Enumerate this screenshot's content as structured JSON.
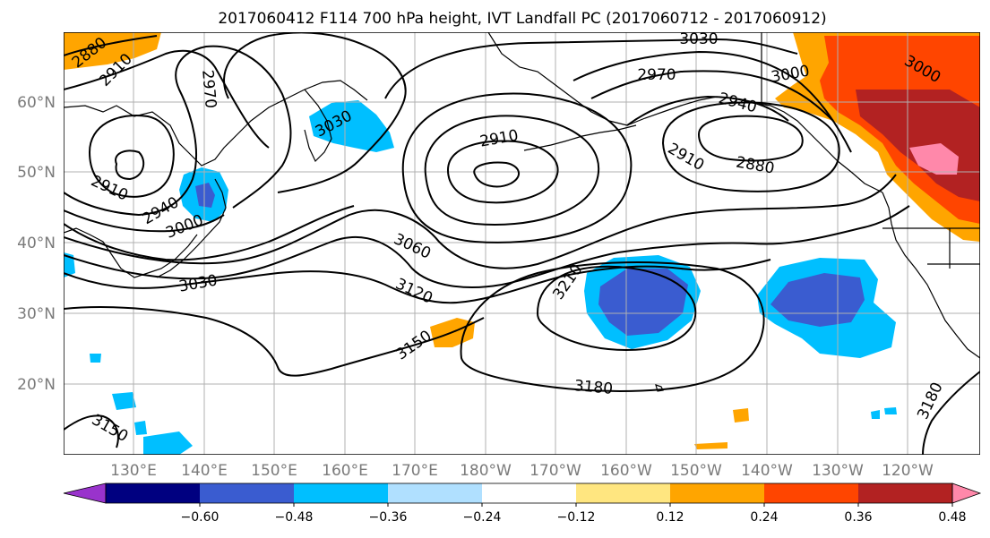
{
  "title": "2017060412 F114 700 hPa height, IVT Landfall PC (2017060712 - 2017060912)",
  "map": {
    "lat_labels": [
      "60°N",
      "50°N",
      "40°N",
      "30°N",
      "20°N"
    ],
    "lon_labels": [
      "130°E",
      "140°E",
      "150°E",
      "160°E",
      "170°E",
      "180°W",
      "170°W",
      "160°W",
      "150°W",
      "140°W",
      "130°W",
      "120°W"
    ],
    "gridlines": true,
    "contour_color": "#000000",
    "contour_labels": [
      "2880",
      "2910",
      "2970",
      "3030",
      "3000",
      "2940",
      "3030",
      "2910",
      "3000",
      "2940",
      "2910",
      "3030",
      "2970",
      "3000",
      "2940",
      "2910",
      "2880",
      "3060",
      "3120",
      "3150",
      "3210",
      "3180",
      "3150",
      "3180",
      "3000",
      "3030"
    ]
  },
  "colorbar": {
    "colors": [
      "#9933cc",
      "#000080",
      "#3a5cd0",
      "#00bfff",
      "#b0e0ff",
      "#ffffff",
      "#ffe680",
      "#ffa500",
      "#ff4500",
      "#b22222",
      "#ff88aa"
    ],
    "tick_labels": [
      "-0.60",
      "-0.48",
      "-0.36",
      "-0.24",
      "-0.12",
      "0.12",
      "0.24",
      "0.36",
      "0.48",
      "0.60"
    ],
    "extend": "both"
  }
}
